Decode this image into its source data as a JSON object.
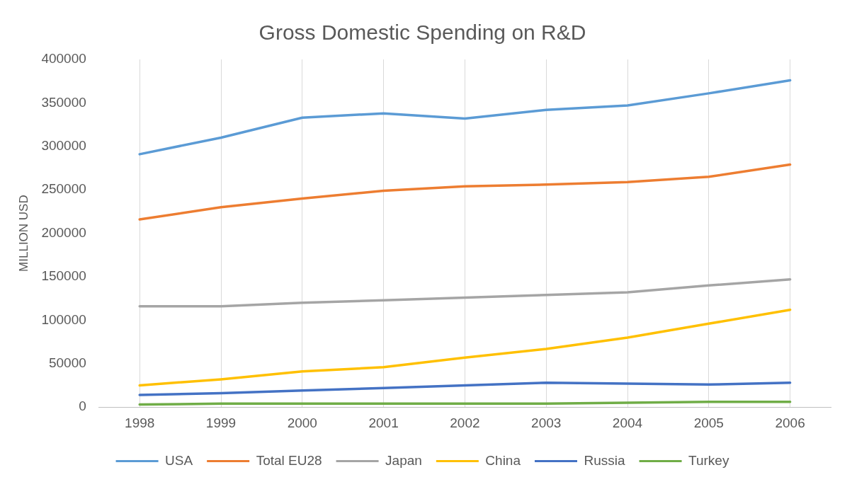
{
  "chart_data": {
    "type": "line",
    "title": "Gross Domestic Spending on R&D",
    "ylabel": "MILLION USD",
    "categories": [
      "1998",
      "1999",
      "2000",
      "2001",
      "2002",
      "2003",
      "2004",
      "2005",
      "2006"
    ],
    "ylim": [
      0,
      400000
    ],
    "yticks": [
      0,
      50000,
      100000,
      150000,
      200000,
      250000,
      300000,
      350000,
      400000
    ],
    "grid": "x",
    "legend": "bottom",
    "marker": "none",
    "series": [
      {
        "name": "USA",
        "color": "#5b9bd5",
        "values": [
          291000,
          310000,
          333000,
          338000,
          332000,
          342000,
          347000,
          361000,
          376000
        ]
      },
      {
        "name": "Total EU28",
        "color": "#ed7d31",
        "values": [
          216000,
          230000,
          240000,
          249000,
          254000,
          256000,
          259000,
          265000,
          279000
        ]
      },
      {
        "name": "Japan",
        "color": "#a5a5a5",
        "values": [
          116000,
          116000,
          120000,
          123000,
          126000,
          129000,
          132000,
          140000,
          147000
        ]
      },
      {
        "name": "China",
        "color": "#ffc000",
        "values": [
          25000,
          32000,
          41000,
          46000,
          57000,
          67000,
          80000,
          96000,
          112000
        ]
      },
      {
        "name": "Russia",
        "color": "#4472c4",
        "values": [
          14000,
          16000,
          19000,
          22000,
          25000,
          28000,
          27000,
          26000,
          28000
        ]
      },
      {
        "name": "Turkey",
        "color": "#70ad47",
        "values": [
          3000,
          4000,
          4000,
          4000,
          4000,
          4000,
          5000,
          6000,
          6000
        ]
      }
    ]
  }
}
